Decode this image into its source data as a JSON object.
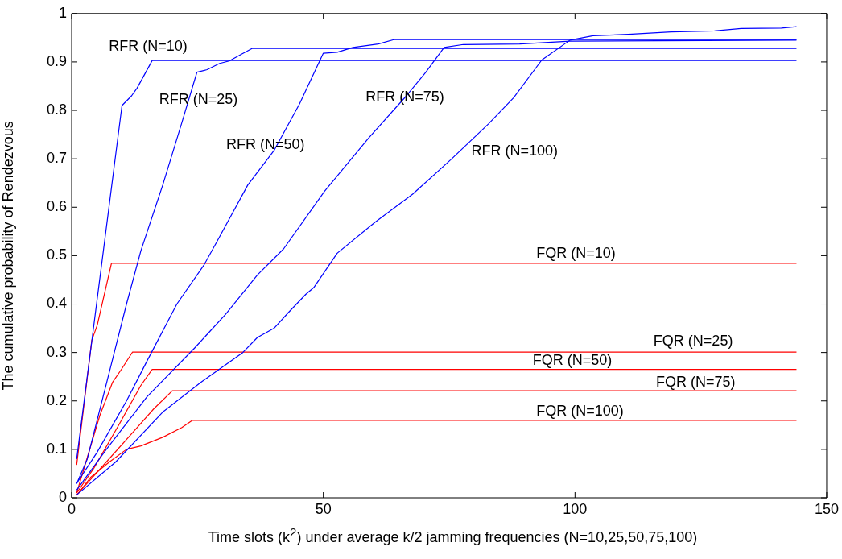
{
  "chart_data": {
    "type": "line",
    "xlabel": "Time slots (k$^{2}$) under average k/2 jamming frequencies (N=10,25,50,75,100)",
    "ylabel": "The cumulative probability of Rendezvous",
    "xlim": [
      0,
      150
    ],
    "xticks": [
      0,
      50,
      100,
      150
    ],
    "ylim": [
      0,
      1
    ],
    "yticks": [
      0,
      0.1,
      0.2,
      0.3,
      0.4,
      0.5,
      0.6,
      0.7,
      0.8,
      0.9,
      1
    ],
    "grid": false,
    "legend": false,
    "marker": "none",
    "line_style": "solid",
    "series": [
      {
        "name": "RFR (N=10)",
        "color": "#0000ff",
        "x": [
          1,
          10,
          11.9,
          13,
          16,
          144
        ],
        "values": [
          0.08,
          0.81,
          0.83,
          0.846,
          0.903,
          0.903
        ]
      },
      {
        "name": "RFR (N=25)",
        "color": "#0000ff",
        "x": [
          1,
          3.1,
          7.5,
          10.9,
          13.75,
          18.1,
          21.9,
          24.9,
          26.9,
          29.4,
          31.3,
          33.75,
          35.9,
          144
        ],
        "values": [
          0.029,
          0.08,
          0.26,
          0.4,
          0.51,
          0.646,
          0.775,
          0.879,
          0.884,
          0.897,
          0.902,
          0.916,
          0.928,
          0.928
        ]
      },
      {
        "name": "RFR (N=50)",
        "color": "#0000ff",
        "x": [
          1,
          5,
          10.9,
          15,
          20.9,
          26.25,
          28.75,
          35,
          40.2,
          45.25,
          50,
          52.75,
          55.9,
          60.9,
          64,
          144
        ],
        "values": [
          0.03,
          0.093,
          0.2,
          0.283,
          0.4,
          0.48,
          0.527,
          0.646,
          0.717,
          0.813,
          0.918,
          0.92,
          0.93,
          0.937,
          0.946,
          0.946
        ]
      },
      {
        "name": "RFR (N=75)",
        "color": "#0000ff",
        "x": [
          1,
          6.9,
          15,
          24.4,
          30.6,
          36.9,
          42.1,
          50.25,
          59,
          66.5,
          70.3,
          74,
          77.8,
          89,
          99,
          144
        ],
        "values": [
          0.016,
          0.1,
          0.209,
          0.309,
          0.379,
          0.46,
          0.514,
          0.633,
          0.743,
          0.83,
          0.878,
          0.93,
          0.936,
          0.937,
          0.943,
          0.945
        ]
      },
      {
        "name": "RFR (N=100)",
        "color": "#0000ff",
        "x": [
          1,
          8.75,
          18.1,
          25.6,
          34,
          36.9,
          40.2,
          43.1,
          46.5,
          48.1,
          52.75,
          60.25,
          67.75,
          75.3,
          82.8,
          87.8,
          93.4,
          99,
          103.6,
          110.6,
          119.1,
          127.7,
          133,
          141,
          144
        ],
        "values": [
          0.006,
          0.074,
          0.177,
          0.238,
          0.3,
          0.331,
          0.35,
          0.383,
          0.42,
          0.434,
          0.505,
          0.569,
          0.627,
          0.698,
          0.772,
          0.826,
          0.904,
          0.945,
          0.954,
          0.957,
          0.962,
          0.964,
          0.969,
          0.97,
          0.973
        ]
      },
      {
        "name": "FQR (N=10)",
        "color": "#ff0000",
        "x": [
          1,
          4,
          5.1,
          7.9,
          144
        ],
        "values": [
          0.068,
          0.325,
          0.357,
          0.484,
          0.484
        ]
      },
      {
        "name": "FQR (N=25)",
        "color": "#ff0000",
        "x": [
          1,
          5.6,
          8.1,
          10,
          12.1,
          144
        ],
        "values": [
          0.01,
          0.17,
          0.238,
          0.267,
          0.301,
          0.301
        ]
      },
      {
        "name": "FQR (N=50)",
        "color": "#ff0000",
        "x": [
          1,
          4.4,
          9.4,
          13.75,
          16,
          144
        ],
        "values": [
          0.01,
          0.061,
          0.151,
          0.232,
          0.265,
          0.265
        ]
      },
      {
        "name": "FQR (N=75)",
        "color": "#ff0000",
        "x": [
          1,
          6.9,
          11.9,
          16.25,
          20,
          144
        ],
        "values": [
          0.006,
          0.074,
          0.132,
          0.183,
          0.221,
          0.221
        ]
      },
      {
        "name": "FQR (N=100)",
        "color": "#ff0000",
        "x": [
          1,
          3.75,
          7.5,
          10.9,
          13.75,
          18.1,
          21.9,
          24,
          144
        ],
        "values": [
          0.005,
          0.042,
          0.074,
          0.1,
          0.107,
          0.125,
          0.145,
          0.16,
          0.16
        ]
      }
    ]
  }
}
